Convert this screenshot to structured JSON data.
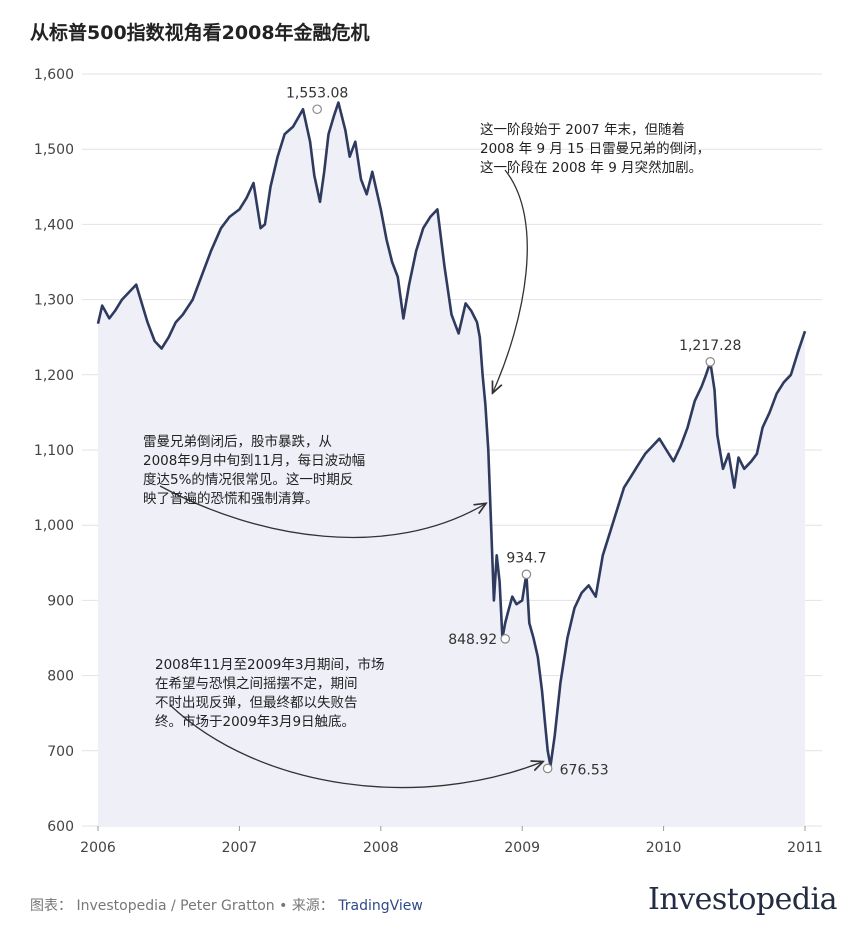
{
  "title": "从标普500指数视角看2008年金融危机",
  "chart_data": {
    "type": "line",
    "title": "从标普500指数视角看2008年金融危机",
    "xlabel": "",
    "ylabel": "",
    "xlim": [
      2006.0,
      2011.0
    ],
    "ylim": [
      600,
      1600
    ],
    "x_ticks": [
      2006,
      2007,
      2008,
      2009,
      2010,
      2011
    ],
    "x_tick_labels": [
      "2006",
      "2007",
      "2008",
      "2009",
      "2010",
      "2011"
    ],
    "y_ticks": [
      600,
      700,
      800,
      900,
      1000,
      1100,
      1200,
      1300,
      1400,
      1500,
      1600
    ],
    "y_tick_labels": [
      "600",
      "700",
      "800",
      "900",
      "1,000",
      "1,100",
      "1,200",
      "1,300",
      "1,400",
      "1,500",
      "1,600"
    ],
    "grid": true,
    "series": [
      {
        "x": [
          2006.0,
          2006.03,
          2006.08,
          2006.12,
          2006.17,
          2006.22,
          2006.27,
          2006.31,
          2006.35,
          2006.4,
          2006.45,
          2006.5,
          2006.55,
          2006.6,
          2006.67,
          2006.73,
          2006.8,
          2006.87,
          2006.93,
          2007.0,
          2007.05,
          2007.1,
          2007.15,
          2007.18,
          2007.22,
          2007.27,
          2007.32,
          2007.38,
          2007.45,
          2007.5,
          2007.53,
          2007.57,
          2007.6,
          2007.63,
          2007.67,
          2007.7,
          2007.75,
          2007.78,
          2007.82,
          2007.86,
          2007.9,
          2007.94,
          2008.0,
          2008.04,
          2008.08,
          2008.12,
          2008.16,
          2008.2,
          2008.25,
          2008.3,
          2008.35,
          2008.4,
          2008.45,
          2008.5,
          2008.55,
          2008.6,
          2008.64,
          2008.68,
          2008.7,
          2008.72,
          2008.74,
          2008.76,
          2008.78,
          2008.8,
          2008.82,
          2008.84,
          2008.86,
          2008.88,
          2008.9,
          2008.93,
          2008.96,
          2009.0,
          2009.03,
          2009.05,
          2009.08,
          2009.11,
          2009.14,
          2009.16,
          2009.18,
          2009.2,
          2009.23,
          2009.27,
          2009.32,
          2009.37,
          2009.42,
          2009.47,
          2009.52,
          2009.57,
          2009.62,
          2009.67,
          2009.72,
          2009.77,
          2009.82,
          2009.87,
          2009.92,
          2009.97,
          2010.02,
          2010.07,
          2010.12,
          2010.17,
          2010.22,
          2010.27,
          2010.3,
          2010.33,
          2010.36,
          2010.38,
          2010.42,
          2010.46,
          2010.5,
          2010.53,
          2010.57,
          2010.62,
          2010.66,
          2010.7,
          2010.75,
          2010.8,
          2010.85,
          2010.9,
          2010.95,
          2011.0
        ],
        "values": [
          1268,
          1292,
          1275,
          1285,
          1300,
          1310,
          1320,
          1295,
          1270,
          1245,
          1235,
          1250,
          1270,
          1280,
          1300,
          1330,
          1365,
          1395,
          1410,
          1420,
          1435,
          1455,
          1395,
          1400,
          1450,
          1490,
          1520,
          1530,
          1553,
          1510,
          1465,
          1430,
          1470,
          1520,
          1545,
          1562,
          1525,
          1490,
          1510,
          1460,
          1440,
          1470,
          1420,
          1380,
          1350,
          1330,
          1275,
          1320,
          1365,
          1395,
          1410,
          1420,
          1345,
          1280,
          1255,
          1295,
          1285,
          1270,
          1250,
          1200,
          1160,
          1100,
          1000,
          900,
          960,
          925,
          850,
          870,
          885,
          905,
          895,
          900,
          935,
          870,
          850,
          825,
          780,
          740,
          700,
          680,
          720,
          790,
          850,
          890,
          910,
          920,
          905,
          960,
          990,
          1020,
          1050,
          1065,
          1080,
          1095,
          1105,
          1115,
          1100,
          1085,
          1105,
          1130,
          1165,
          1185,
          1200,
          1217,
          1180,
          1120,
          1075,
          1095,
          1050,
          1090,
          1075,
          1085,
          1095,
          1130,
          1150,
          1175,
          1190,
          1200,
          1230,
          1258
        ]
      }
    ],
    "annotations": [
      {
        "x": 2007.55,
        "y": 1553.08,
        "label": "1,553.08"
      },
      {
        "x": 2008.88,
        "y": 848.92,
        "label": "848.92"
      },
      {
        "x": 2009.03,
        "y": 934.7,
        "label": "934.7"
      },
      {
        "x": 2009.18,
        "y": 676.53,
        "label": "676.53"
      },
      {
        "x": 2010.33,
        "y": 1217.28,
        "label": "1,217.28"
      }
    ],
    "notes": [
      "这一阶段始于 2007 年末，但随着\n2008 年 9 月 15 日雷曼兄弟的倒闭，\n这一阶段在 2008 年 9 月突然加剧。",
      "雷曼兄弟倒闭后，股市暴跌，从\n2008年9月中旬到11月，每日波动幅\n度达5%的情况很常见。这一时期反\n映了普遍的恐慌和强制清算。",
      "2008年11月至2009年3月期间，市场\n在希望与恐惧之间摇摆不定，期间\n不时出现反弹，但最终都以失败告\n终。市场于2009年3月9日触底。"
    ],
    "colors": {
      "line": "#2f3a5f",
      "area": "#efeff8",
      "grid": "#e2e2e2",
      "marker": "#8a8a8a"
    }
  },
  "footer": {
    "chart_label": "图表：",
    "credit": "Investopedia / Peter Gratton",
    "separator": "•",
    "source_label": "来源：",
    "source": "TradingView"
  },
  "logo": {
    "text": "Investopedia"
  }
}
